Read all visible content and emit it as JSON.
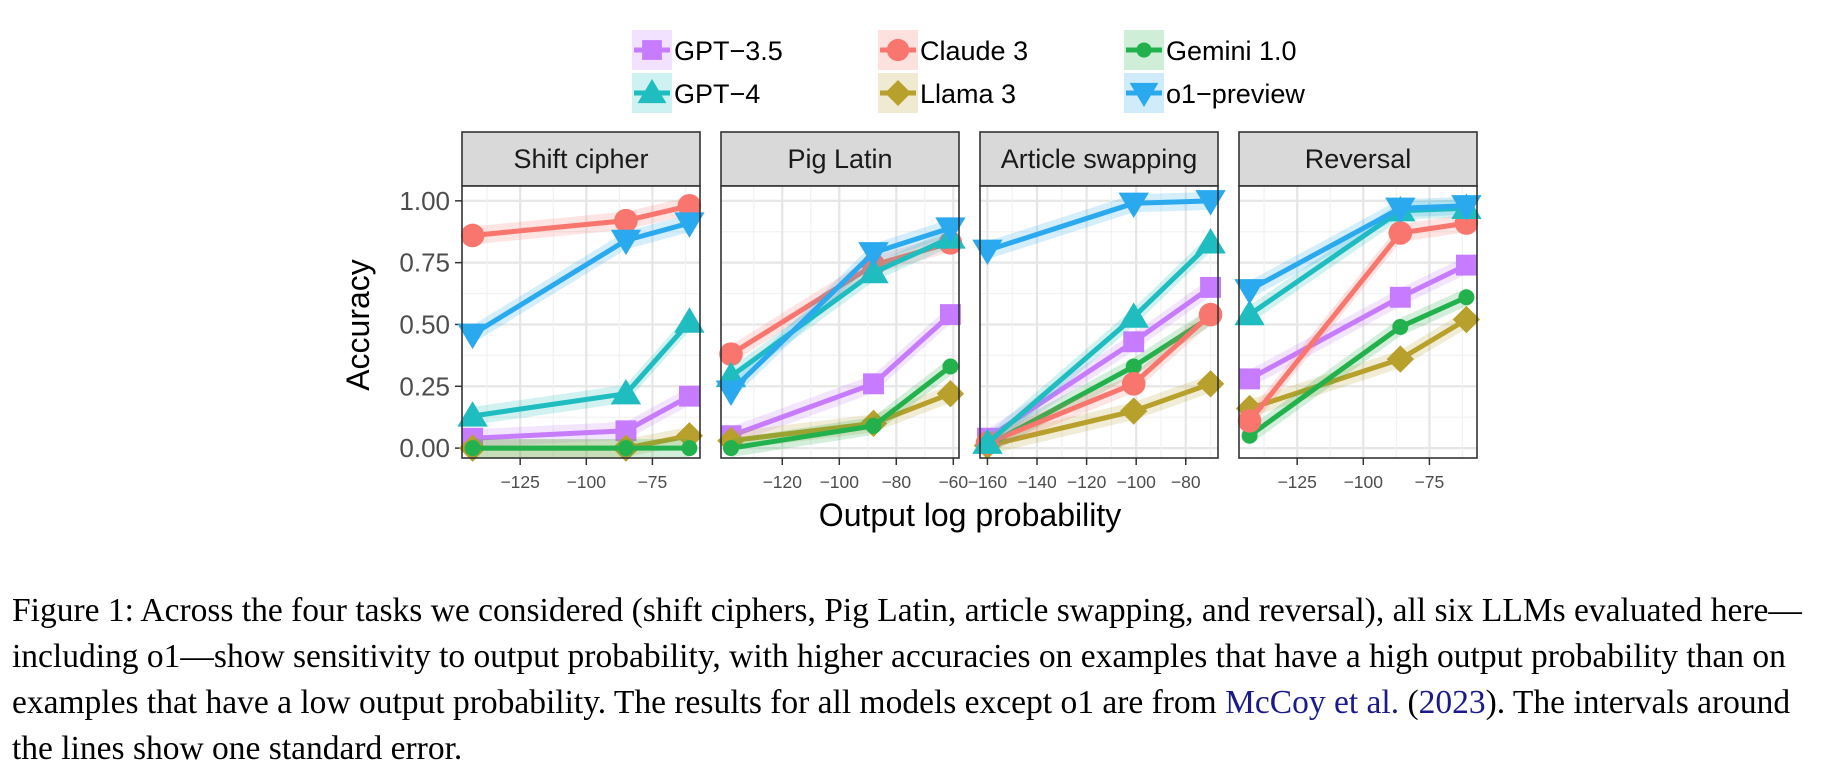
{
  "chart_data": {
    "type": "line",
    "ylabel": "Accuracy",
    "xlabel": "Output log probability",
    "ylim": [
      -0.04,
      1.06
    ],
    "yticks": [
      0.0,
      0.25,
      0.5,
      0.75,
      1.0
    ],
    "ytick_labels": [
      "0.00",
      "0.25",
      "0.50",
      "0.75",
      "1.00"
    ],
    "grid": true,
    "legend_position": "top",
    "legend": [
      {
        "name": "GPT−3.5",
        "color": "#c77cff",
        "marker": "square"
      },
      {
        "name": "Claude 3",
        "color": "#f8766d",
        "marker": "circle"
      },
      {
        "name": "Gemini 1.0",
        "color": "#22b14c",
        "marker": "dot"
      },
      {
        "name": "GPT−4",
        "color": "#1fbdbf",
        "marker": "triangle-up"
      },
      {
        "name": "Llama 3",
        "color": "#b8a02c",
        "marker": "diamond"
      },
      {
        "name": "o1−preview",
        "color": "#2aa9ef",
        "marker": "triangle-down"
      }
    ],
    "panels": [
      {
        "title": "Shift cipher",
        "xlim": [
          -147,
          -57
        ],
        "xticks": [
          -125,
          -100,
          -75
        ],
        "xtick_labels": [
          "−125",
          "−100",
          "−75"
        ],
        "series": [
          {
            "name": "GPT−3.5",
            "x": [
              -143,
              -85,
              -61
            ],
            "y": [
              0.04,
              0.07,
              0.21
            ]
          },
          {
            "name": "Claude 3",
            "x": [
              -143,
              -85,
              -61
            ],
            "y": [
              0.86,
              0.92,
              0.98
            ]
          },
          {
            "name": "Gemini 1.0",
            "x": [
              -143,
              -85,
              -61
            ],
            "y": [
              0.0,
              0.0,
              0.0
            ]
          },
          {
            "name": "GPT−4",
            "x": [
              -143,
              -85,
              -61
            ],
            "y": [
              0.13,
              0.22,
              0.51
            ]
          },
          {
            "name": "Llama 3",
            "x": [
              -143,
              -85,
              -61
            ],
            "y": [
              0.0,
              0.0,
              0.05
            ]
          },
          {
            "name": "o1−preview",
            "x": [
              -143,
              -85,
              -61
            ],
            "y": [
              0.46,
              0.84,
              0.91
            ]
          }
        ]
      },
      {
        "title": "Pig Latin",
        "xlim": [
          -141.5,
          -58
        ],
        "xticks": [
          -120,
          -100,
          -80,
          -60
        ],
        "xtick_labels": [
          "−120",
          "−100",
          "−80",
          "−60"
        ],
        "series": [
          {
            "name": "GPT−3.5",
            "x": [
              -138,
              -88,
              -61
            ],
            "y": [
              0.05,
              0.26,
              0.54
            ]
          },
          {
            "name": "Claude 3",
            "x": [
              -138,
              -88,
              -61
            ],
            "y": [
              0.38,
              0.74,
              0.83
            ]
          },
          {
            "name": "Gemini 1.0",
            "x": [
              -138,
              -88,
              -61
            ],
            "y": [
              0.0,
              0.09,
              0.33
            ]
          },
          {
            "name": "GPT−4",
            "x": [
              -138,
              -88,
              -61
            ],
            "y": [
              0.29,
              0.71,
              0.85
            ]
          },
          {
            "name": "Llama 3",
            "x": [
              -138,
              -88,
              -61
            ],
            "y": [
              0.03,
              0.1,
              0.22
            ]
          },
          {
            "name": "o1−preview",
            "x": [
              -138,
              -88,
              -61
            ],
            "y": [
              0.23,
              0.79,
              0.89
            ]
          }
        ]
      },
      {
        "title": "Article swapping",
        "xlim": [
          -163,
          -67
        ],
        "xticks": [
          -160,
          -140,
          -120,
          -100,
          -80
        ],
        "xtick_labels": [
          "−160",
          "−140",
          "−120",
          "−100",
          "−80"
        ],
        "series": [
          {
            "name": "GPT−3.5",
            "x": [
              -160,
              -101,
              -70
            ],
            "y": [
              0.04,
              0.43,
              0.65
            ]
          },
          {
            "name": "Claude 3",
            "x": [
              -160,
              -101,
              -70
            ],
            "y": [
              0.02,
              0.26,
              0.54
            ]
          },
          {
            "name": "Gemini 1.0",
            "x": [
              -160,
              -101,
              -70
            ],
            "y": [
              0.01,
              0.33,
              0.53
            ]
          },
          {
            "name": "GPT−4",
            "x": [
              -160,
              -101,
              -70
            ],
            "y": [
              0.02,
              0.53,
              0.83
            ]
          },
          {
            "name": "Llama 3",
            "x": [
              -160,
              -101,
              -70
            ],
            "y": [
              0.01,
              0.15,
              0.26
            ]
          },
          {
            "name": "o1−preview",
            "x": [
              -160,
              -101,
              -70
            ],
            "y": [
              0.8,
              0.99,
              1.0
            ]
          }
        ]
      },
      {
        "title": "Reversal",
        "xlim": [
          -147,
          -57
        ],
        "xticks": [
          -125,
          -100,
          -75
        ],
        "xtick_labels": [
          "−125",
          "−100",
          "−75"
        ],
        "series": [
          {
            "name": "GPT−3.5",
            "x": [
              -143,
              -86,
              -61
            ],
            "y": [
              0.28,
              0.61,
              0.74
            ]
          },
          {
            "name": "Claude 3",
            "x": [
              -143,
              -86,
              -61
            ],
            "y": [
              0.11,
              0.87,
              0.91
            ]
          },
          {
            "name": "Gemini 1.0",
            "x": [
              -143,
              -86,
              -61
            ],
            "y": [
              0.05,
              0.49,
              0.61
            ]
          },
          {
            "name": "GPT−4",
            "x": [
              -143,
              -86,
              -61
            ],
            "y": [
              0.54,
              0.96,
              0.97
            ]
          },
          {
            "name": "Llama 3",
            "x": [
              -143,
              -86,
              -61
            ],
            "y": [
              0.16,
              0.36,
              0.52
            ]
          },
          {
            "name": "o1−preview",
            "x": [
              -143,
              -86,
              -61
            ],
            "y": [
              0.64,
              0.97,
              0.98
            ]
          }
        ]
      }
    ]
  },
  "caption": {
    "part1": "Figure 1: Across the four tasks we considered (shift ciphers, Pig Latin, article swapping, and reversal), all six LLMs evaluated here—including o1—show sensitivity to output probability, with higher accuracies on examples that have a high output probability than on examples that have a low output probability. The results for all models except o1 are from ",
    "citation_authors": "McCoy et al.",
    "paren_open": " (",
    "citation_year": "2023",
    "part2": "). The intervals around the lines show one standard error."
  }
}
